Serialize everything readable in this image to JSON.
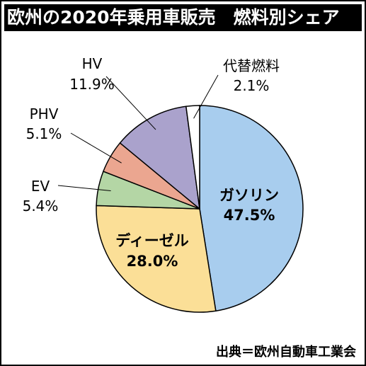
{
  "title": "欧州の2020年乗用車販売　燃料別シェア",
  "source": "出典＝欧州自動車工業会",
  "chart_data": {
    "type": "pie",
    "title": "欧州の2020年乗用車販売　燃料別シェア",
    "slices": [
      {
        "name": "ガソリン",
        "value": 47.5,
        "label": "47.5%",
        "color": "#a8cdee"
      },
      {
        "name": "ディーゼル",
        "value": 28.0,
        "label": "28.0%",
        "color": "#fbdf97"
      },
      {
        "name": "EV",
        "value": 5.4,
        "label": "5.4%",
        "color": "#b4d6a5"
      },
      {
        "name": "PHV",
        "value": 5.1,
        "label": "5.1%",
        "color": "#eba690"
      },
      {
        "name": "HV",
        "value": 11.9,
        "label": "11.9%",
        "color": "#aaa2cc"
      },
      {
        "name": "代替燃料",
        "value": 2.1,
        "label": "2.1%",
        "color": "#ffffff"
      }
    ]
  }
}
